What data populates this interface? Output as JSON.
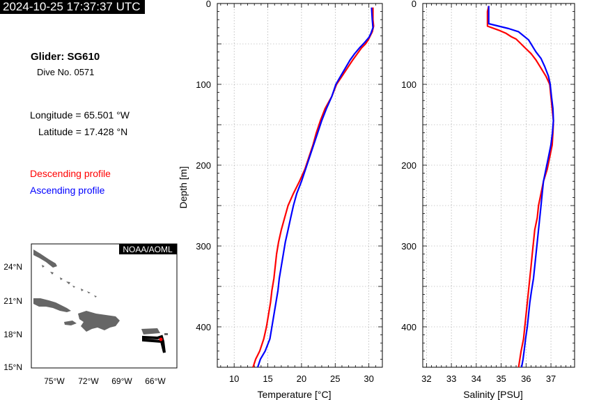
{
  "header": {
    "timestamp": "2024-10-25 17:37:37 UTC"
  },
  "info": {
    "glider": "Glider: SG610",
    "dive": "Dive No. 0571",
    "longitude": "Longitude = 65.501 °W",
    "latitude": "Latitude = 17.428 °N"
  },
  "legend": {
    "descending": "Descending profile",
    "ascending": "Ascending profile",
    "descending_color": "#ff0000",
    "ascending_color": "#0000ff"
  },
  "map": {
    "credit": "NOAA/AOML",
    "lat_labels": [
      "24°N",
      "21°N",
      "18°N",
      "15°N"
    ],
    "lon_labels": [
      "75°W",
      "72°W",
      "69°W",
      "66°W"
    ],
    "glider_position": {
      "lon": -65.501,
      "lat": 17.428
    }
  },
  "chart_data": [
    {
      "type": "line",
      "xlabel": "Temperature [°C]",
      "ylabel": "Depth [m]",
      "xlim": [
        7.5,
        32
      ],
      "ylim": [
        0,
        450
      ],
      "y_inverted": true,
      "grid": true,
      "x_ticks": [
        10,
        15,
        20,
        25,
        30
      ],
      "y_ticks": [
        0,
        100,
        200,
        300,
        400
      ],
      "series": [
        {
          "name": "Descending profile",
          "color": "#ff0000",
          "points": [
            [
              30.6,
              5
            ],
            [
              30.6,
              20
            ],
            [
              30.7,
              28
            ],
            [
              30.5,
              35
            ],
            [
              30.2,
              40
            ],
            [
              29.9,
              45
            ],
            [
              29.5,
              50
            ],
            [
              28.9,
              55
            ],
            [
              28.3,
              62
            ],
            [
              27.6,
              70
            ],
            [
              26.8,
              80
            ],
            [
              26.0,
              90
            ],
            [
              25.2,
              100
            ],
            [
              24.5,
              115
            ],
            [
              23.5,
              130
            ],
            [
              22.8,
              145
            ],
            [
              22.2,
              160
            ],
            [
              21.7,
              175
            ],
            [
              21.1,
              190
            ],
            [
              20.5,
              205
            ],
            [
              19.7,
              220
            ],
            [
              18.8,
              235
            ],
            [
              18.0,
              250
            ],
            [
              17.5,
              265
            ],
            [
              17.0,
              280
            ],
            [
              16.6,
              295
            ],
            [
              16.3,
              310
            ],
            [
              16.1,
              325
            ],
            [
              15.9,
              340
            ],
            [
              15.6,
              355
            ],
            [
              15.4,
              370
            ],
            [
              15.1,
              385
            ],
            [
              14.8,
              400
            ],
            [
              14.4,
              415
            ],
            [
              13.8,
              430
            ],
            [
              13.2,
              440
            ],
            [
              12.8,
              450
            ]
          ]
        },
        {
          "name": "Ascending profile",
          "color": "#0000ff",
          "points": [
            [
              30.4,
              5
            ],
            [
              30.5,
              20
            ],
            [
              30.6,
              30
            ],
            [
              30.3,
              37
            ],
            [
              30.0,
              42
            ],
            [
              29.4,
              48
            ],
            [
              28.6,
              55
            ],
            [
              27.9,
              62
            ],
            [
              27.2,
              70
            ],
            [
              26.5,
              80
            ],
            [
              25.8,
              90
            ],
            [
              25.1,
              100
            ],
            [
              24.5,
              115
            ],
            [
              23.7,
              130
            ],
            [
              23.0,
              145
            ],
            [
              22.4,
              160
            ],
            [
              21.8,
              175
            ],
            [
              21.2,
              190
            ],
            [
              20.6,
              205
            ],
            [
              20.0,
              220
            ],
            [
              19.3,
              235
            ],
            [
              18.8,
              250
            ],
            [
              18.4,
              265
            ],
            [
              18.0,
              280
            ],
            [
              17.6,
              295
            ],
            [
              17.3,
              310
            ],
            [
              17.0,
              325
            ],
            [
              16.7,
              340
            ],
            [
              16.5,
              355
            ],
            [
              16.2,
              370
            ],
            [
              15.9,
              385
            ],
            [
              15.6,
              400
            ],
            [
              15.3,
              415
            ],
            [
              14.6,
              430
            ],
            [
              13.9,
              440
            ],
            [
              13.5,
              450
            ]
          ]
        }
      ]
    },
    {
      "type": "line",
      "xlabel": "Salinity [PSU]",
      "ylabel": "",
      "xlim": [
        31.85,
        37.95
      ],
      "ylim": [
        0,
        450
      ],
      "y_inverted": true,
      "grid": true,
      "x_ticks": [
        32,
        33,
        34,
        35,
        36,
        37
      ],
      "y_ticks": [
        0,
        100,
        200,
        300,
        400
      ],
      "series": [
        {
          "name": "Descending profile",
          "color": "#ff0000",
          "points": [
            [
              34.5,
              3
            ],
            [
              34.45,
              10
            ],
            [
              34.45,
              20
            ],
            [
              34.45,
              28
            ],
            [
              34.9,
              33
            ],
            [
              35.2,
              37
            ],
            [
              35.4,
              41
            ],
            [
              35.6,
              44
            ],
            [
              35.7,
              47
            ],
            [
              35.8,
              50
            ],
            [
              35.9,
              53
            ],
            [
              36.0,
              56
            ],
            [
              36.2,
              62
            ],
            [
              36.4,
              70
            ],
            [
              36.6,
              80
            ],
            [
              36.8,
              90
            ],
            [
              36.95,
              100
            ],
            [
              37.0,
              115
            ],
            [
              37.05,
              130
            ],
            [
              37.1,
              145
            ],
            [
              37.08,
              160
            ],
            [
              37.05,
              175
            ],
            [
              36.95,
              190
            ],
            [
              36.85,
              205
            ],
            [
              36.7,
              220
            ],
            [
              36.6,
              235
            ],
            [
              36.5,
              250
            ],
            [
              36.45,
              265
            ],
            [
              36.35,
              280
            ],
            [
              36.3,
              295
            ],
            [
              36.25,
              310
            ],
            [
              36.2,
              325
            ],
            [
              36.15,
              340
            ],
            [
              36.1,
              355
            ],
            [
              36.05,
              370
            ],
            [
              36.0,
              385
            ],
            [
              35.95,
              400
            ],
            [
              35.9,
              415
            ],
            [
              35.8,
              430
            ],
            [
              35.75,
              440
            ],
            [
              35.7,
              450
            ]
          ]
        },
        {
          "name": "Ascending profile",
          "color": "#0000ff",
          "points": [
            [
              34.5,
              3
            ],
            [
              34.5,
              10
            ],
            [
              34.5,
              20
            ],
            [
              34.5,
              25
            ],
            [
              34.9,
              28
            ],
            [
              35.3,
              31
            ],
            [
              35.7,
              35
            ],
            [
              35.9,
              40
            ],
            [
              36.1,
              45
            ],
            [
              36.2,
              50
            ],
            [
              36.3,
              55
            ],
            [
              36.4,
              60
            ],
            [
              36.6,
              68
            ],
            [
              36.75,
              78
            ],
            [
              36.9,
              90
            ],
            [
              36.97,
              100
            ],
            [
              37.02,
              115
            ],
            [
              37.08,
              130
            ],
            [
              37.1,
              145
            ],
            [
              37.06,
              160
            ],
            [
              37.0,
              175
            ],
            [
              36.9,
              190
            ],
            [
              36.8,
              205
            ],
            [
              36.7,
              220
            ],
            [
              36.65,
              235
            ],
            [
              36.6,
              250
            ],
            [
              36.55,
              265
            ],
            [
              36.5,
              280
            ],
            [
              36.45,
              295
            ],
            [
              36.4,
              310
            ],
            [
              36.35,
              325
            ],
            [
              36.3,
              340
            ],
            [
              36.22,
              355
            ],
            [
              36.15,
              370
            ],
            [
              36.1,
              385
            ],
            [
              36.05,
              400
            ],
            [
              35.98,
              415
            ],
            [
              35.92,
              430
            ],
            [
              35.88,
              440
            ],
            [
              35.82,
              450
            ]
          ]
        }
      ]
    }
  ]
}
